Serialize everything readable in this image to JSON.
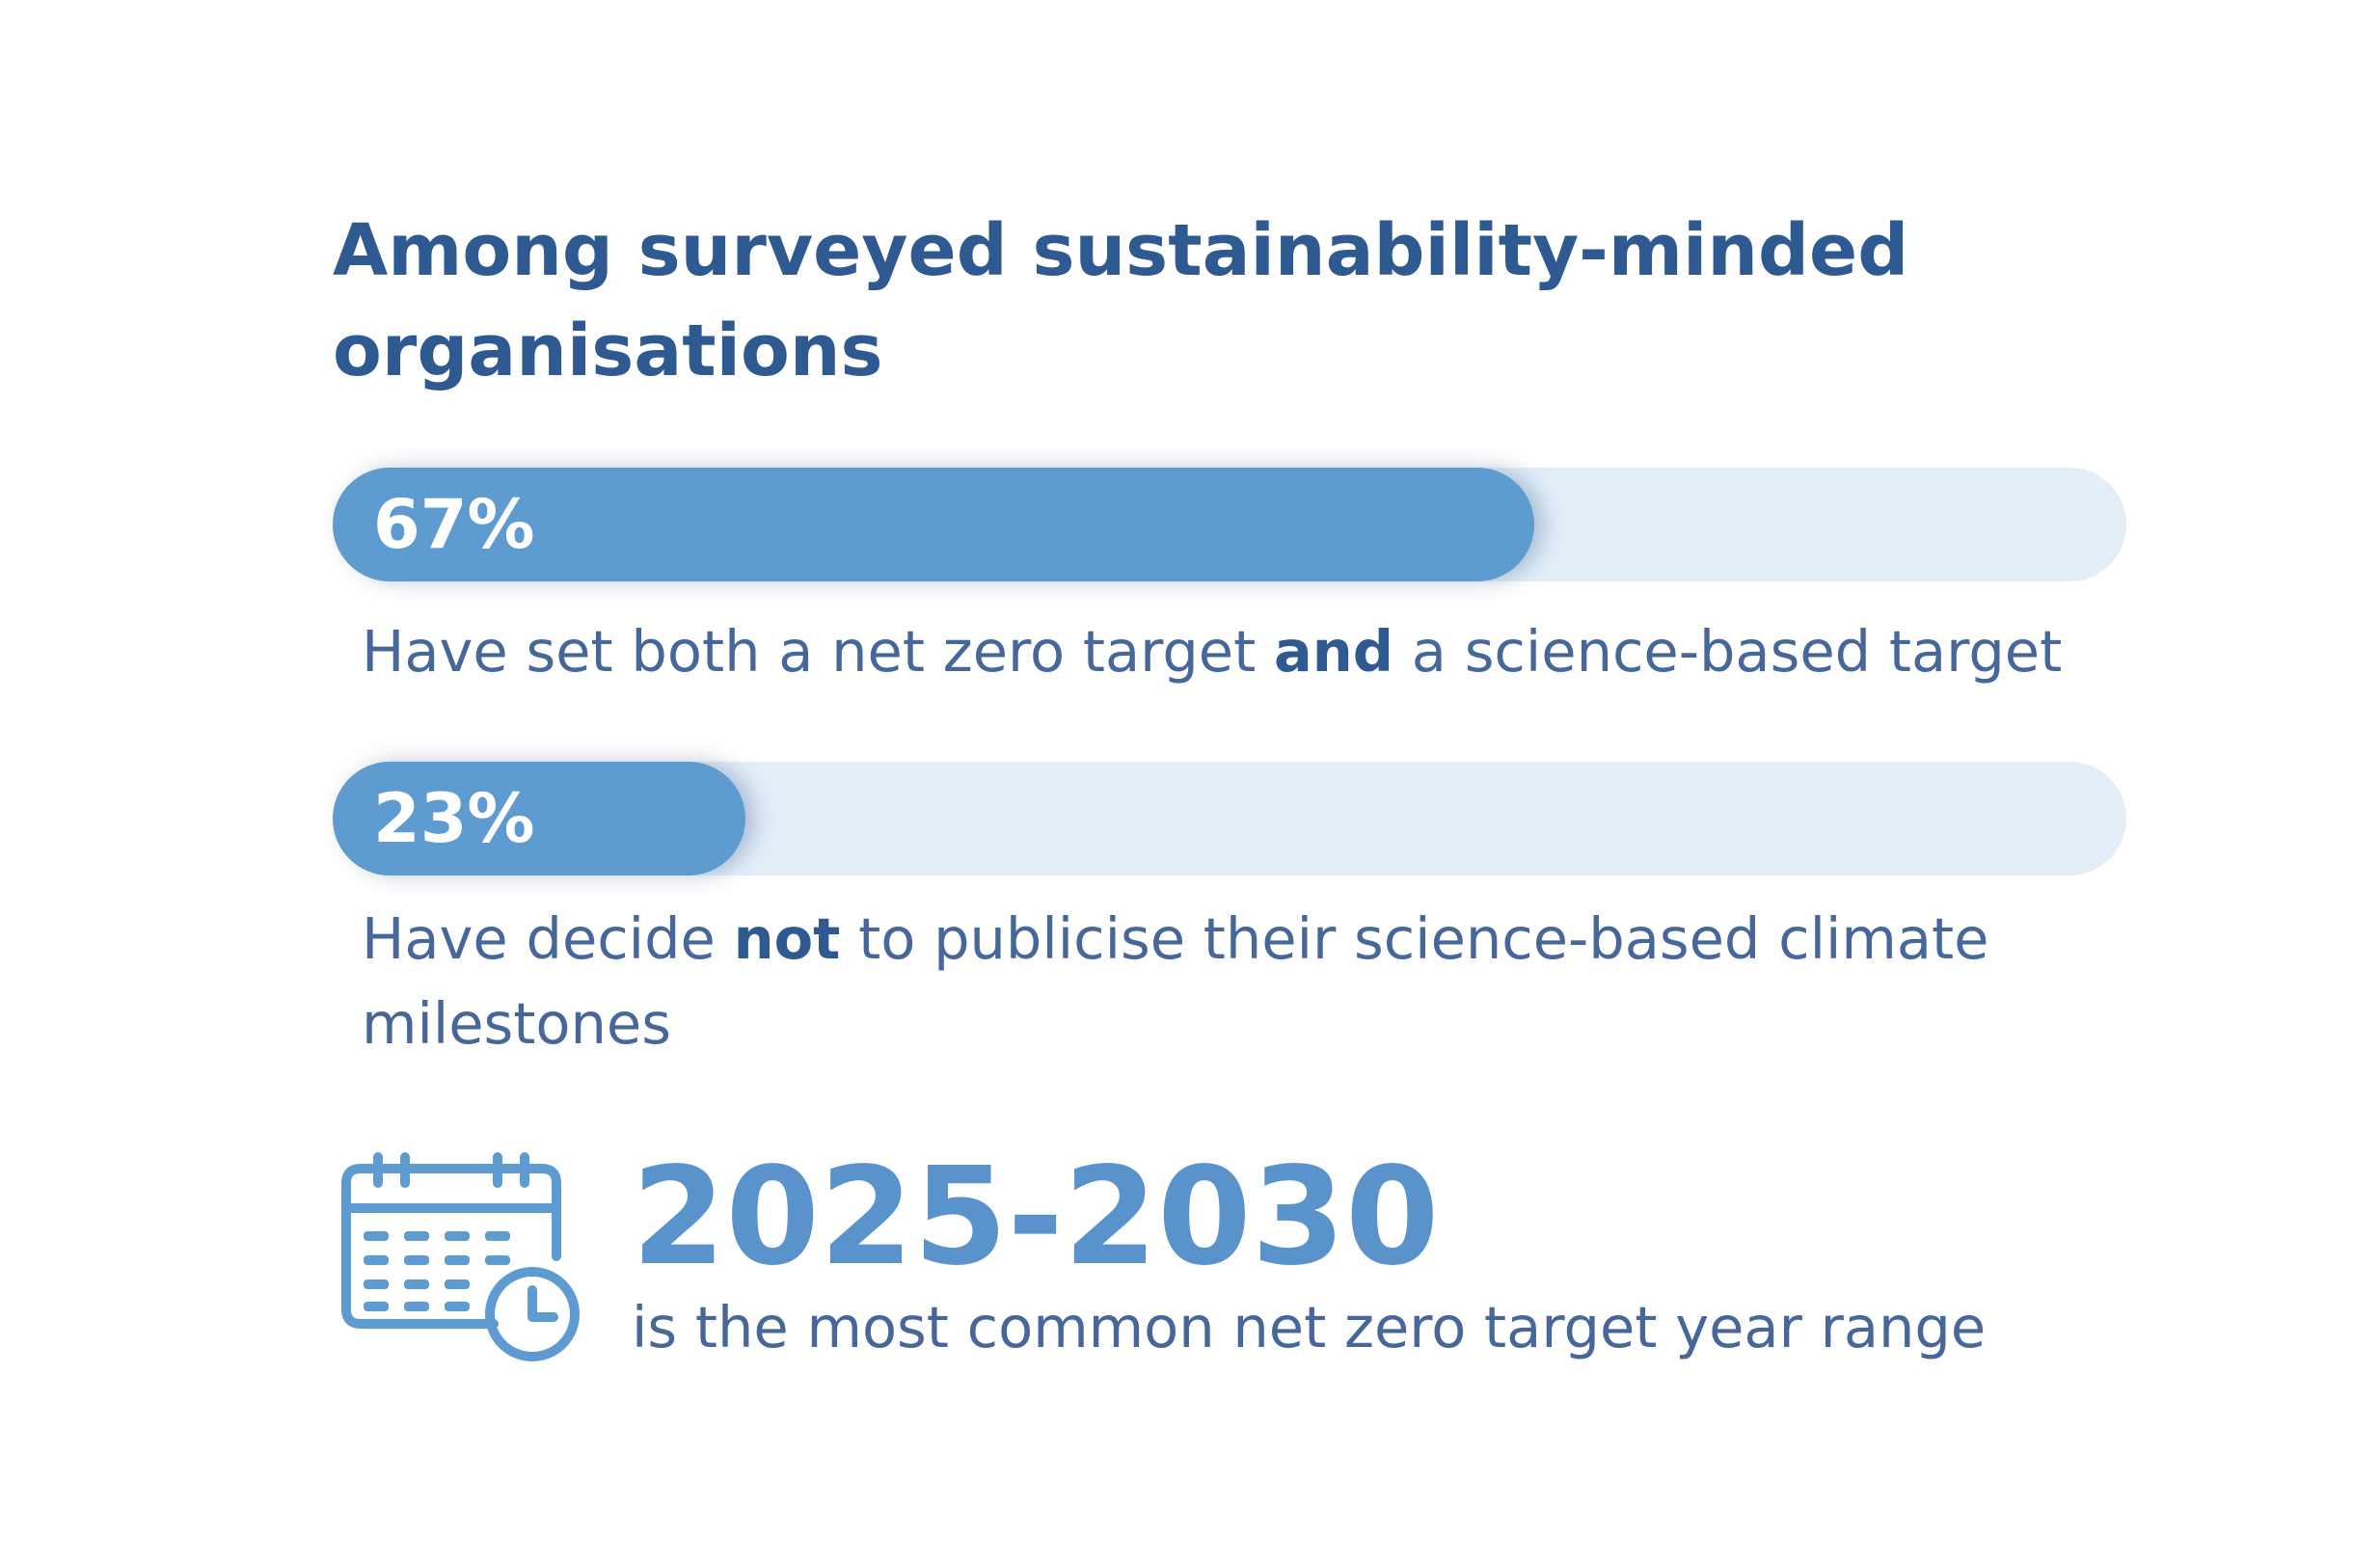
{
  "title": "Among surveyed sustainability-minded organisations",
  "stats": [
    {
      "value_label": "67%",
      "value": 67,
      "caption_before": "Have set both a net zero target ",
      "caption_bold": "and",
      "caption_after": " a science-based target"
    },
    {
      "value_label": "23%",
      "value": 23,
      "caption_before": "Have decide ",
      "caption_bold": "not",
      "caption_after": " to publicise their science-based climate milestones"
    }
  ],
  "highlight": {
    "icon": "calendar-clock-icon",
    "value": "2025-2030",
    "caption": "is the most common net zero target year range"
  },
  "colors": {
    "heading": "#2f5a91",
    "bar_fill": "#5e9bd0",
    "bar_track": "#e3eef9",
    "body_text": "#47679b",
    "highlight_value": "#5a93cc"
  }
}
